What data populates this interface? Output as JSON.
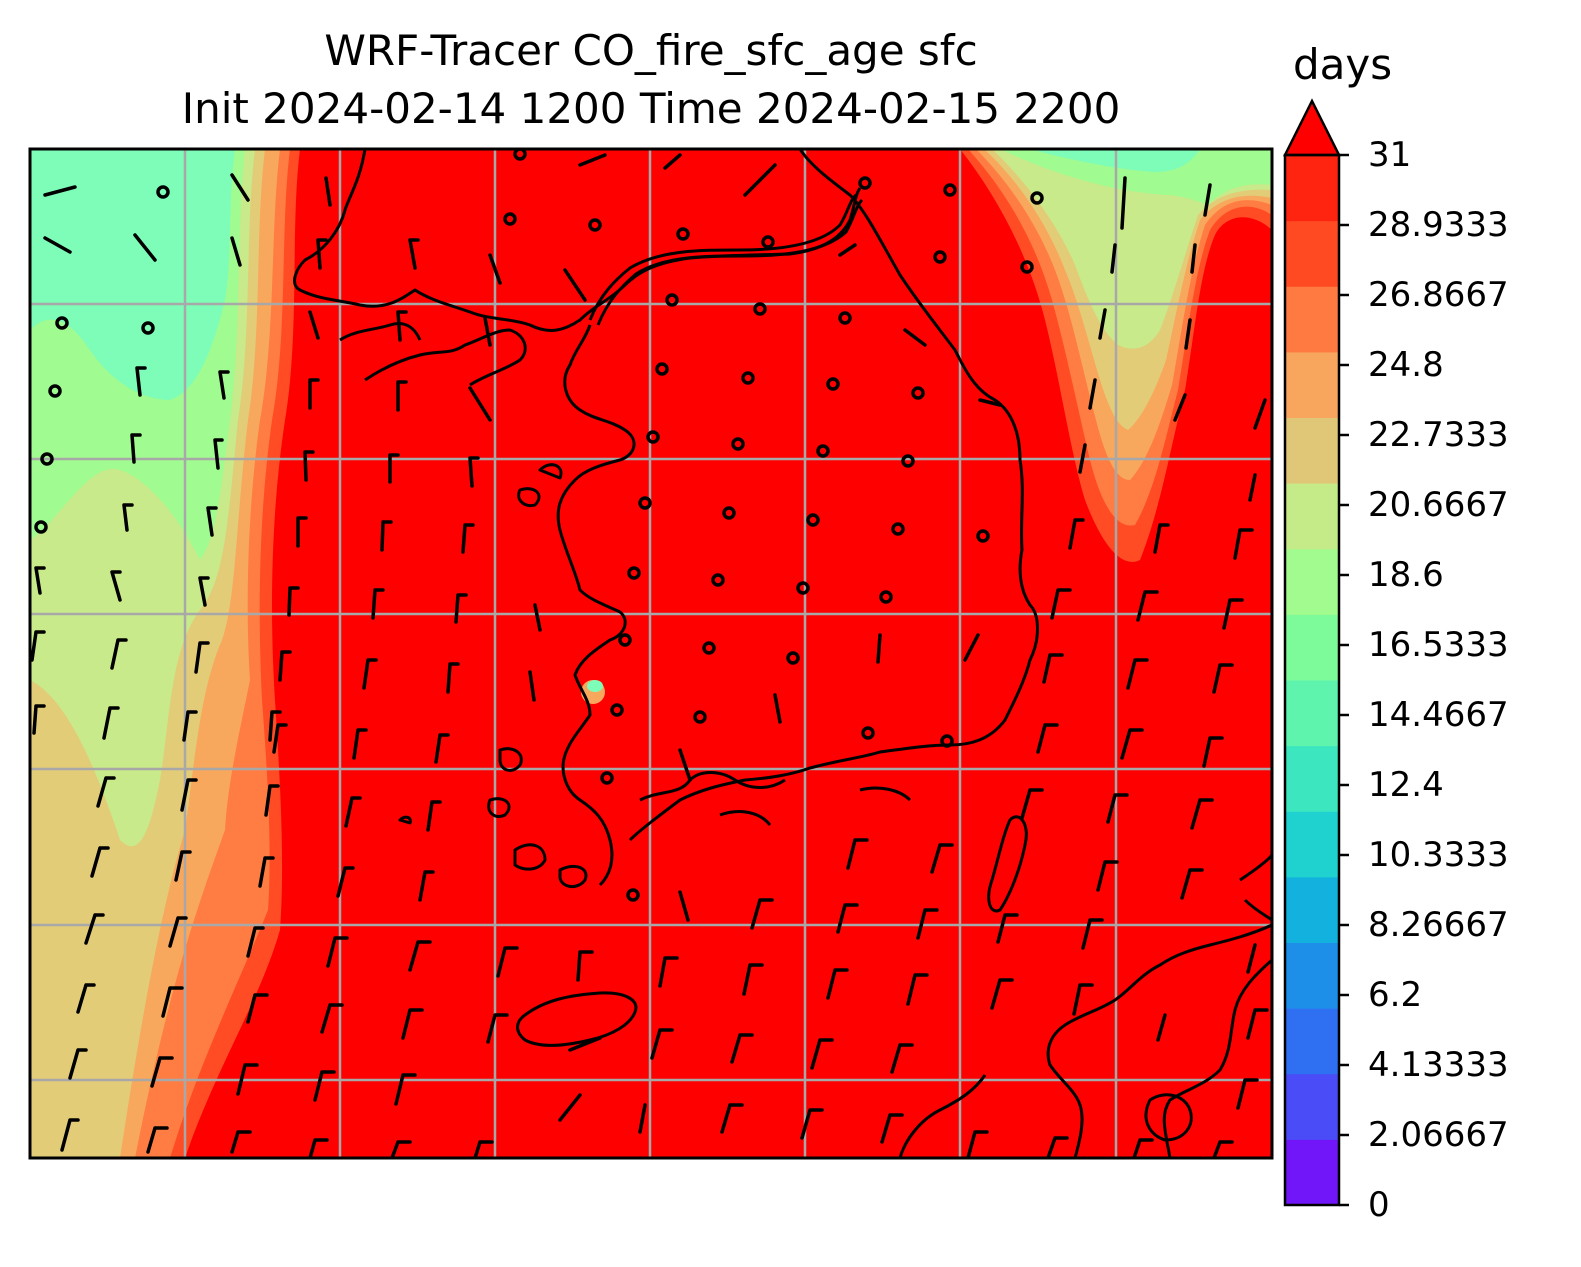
{
  "title_line1": "WRF-Tracer CO_fire_sfc_age sfc",
  "title_line2": "Init 2024-02-14 1200 Time 2024-02-15 2200",
  "colorbar": {
    "units": "days",
    "ticks": [
      "0",
      "2.06667",
      "4.13333",
      "6.2",
      "8.26667",
      "10.3333",
      "12.4",
      "14.4667",
      "16.5333",
      "18.6",
      "20.6667",
      "22.7333",
      "24.8",
      "26.8667",
      "28.9333",
      "31"
    ],
    "colors": [
      "#7216fa",
      "#4a4cf8",
      "#2f6ff2",
      "#1d8fe9",
      "#13b1dd",
      "#1fd2d0",
      "#3ce7c0",
      "#5ff4ae",
      "#7dfb9b",
      "#a2fb8f",
      "#c5ea88",
      "#e0c778",
      "#f8a55e",
      "#ff7a40",
      "#ff4a22",
      "#ff2410"
    ],
    "extend_color": "#ff0000",
    "extend": "max"
  },
  "map": {
    "field_colors": {
      "background": "#ff0000",
      "age_18_20": "#c8ea8a",
      "age_16_18": "#a0fb90",
      "age_14_16": "#7dfdb8",
      "age_20_22": "#e2cc78",
      "age_22_24": "#f8a85c",
      "age_24_26": "#ff7d42",
      "age_26_28": "#ff4c24"
    },
    "gridline_color": "#a8a8a8",
    "coastline_color": "#000000",
    "wind_barbs": "black"
  }
}
